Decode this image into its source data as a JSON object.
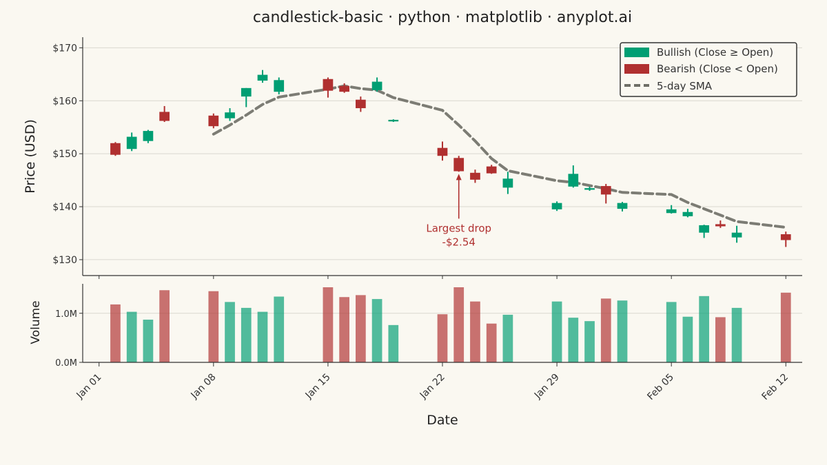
{
  "chart_data": {
    "type": "candlestick",
    "title": "candlestick-basic · python · matplotlib · anyplot.ai",
    "xlabel": "Date",
    "price_ylabel": "Price (USD)",
    "volume_ylabel": "Volume",
    "price_ylim": [
      127,
      172
    ],
    "volume_ylim": [
      0,
      1.6
    ],
    "price_ticks": [
      130,
      140,
      150,
      160,
      170
    ],
    "price_tick_labels": [
      "$130",
      "$140",
      "$150",
      "$160",
      "$170"
    ],
    "volume_ticks": [
      0,
      1.0
    ],
    "volume_tick_labels": [
      "0.0M",
      "1.0M"
    ],
    "x_ticks": [
      {
        "date": "2024-01-01",
        "label": "Jan 01"
      },
      {
        "date": "2024-01-08",
        "label": "Jan 08"
      },
      {
        "date": "2024-01-15",
        "label": "Jan 15"
      },
      {
        "date": "2024-01-22",
        "label": "Jan 22"
      },
      {
        "date": "2024-01-29",
        "label": "Jan 29"
      },
      {
        "date": "2024-02-05",
        "label": "Feb 05"
      },
      {
        "date": "2024-02-12",
        "label": "Feb 12"
      }
    ],
    "x_range": [
      "2023-12-31",
      "2024-02-13"
    ],
    "grid": true,
    "legend_position": "top-right",
    "colors": {
      "bullish": "#009E73",
      "bearish": "#B03030",
      "sma": "#6E6E66",
      "grid": "#DAD8D0",
      "axis": "#333333",
      "text": "#333333"
    },
    "legend": [
      {
        "key": "bullish",
        "label": "Bullish (Close ≥ Open)"
      },
      {
        "key": "bearish",
        "label": "Bearish (Close < Open)"
      },
      {
        "key": "sma",
        "label": "5-day SMA"
      }
    ],
    "candles": [
      {
        "date": "2024-01-02",
        "open": 152.0,
        "high": 152.2,
        "low": 149.6,
        "close": 149.8,
        "volume": 1.18
      },
      {
        "date": "2024-01-03",
        "open": 150.9,
        "high": 154.0,
        "low": 150.5,
        "close": 153.2,
        "volume": 1.03
      },
      {
        "date": "2024-01-04",
        "open": 152.4,
        "high": 154.5,
        "low": 152.0,
        "close": 154.3,
        "volume": 0.87
      },
      {
        "date": "2024-01-05",
        "open": 157.9,
        "high": 159.0,
        "low": 156.0,
        "close": 156.2,
        "volume": 1.47
      },
      {
        "date": "2024-01-08",
        "open": 157.2,
        "high": 157.6,
        "low": 154.8,
        "close": 155.2,
        "volume": 1.45
      },
      {
        "date": "2024-01-09",
        "open": 156.7,
        "high": 158.6,
        "low": 156.2,
        "close": 157.8,
        "volume": 1.23
      },
      {
        "date": "2024-01-10",
        "open": 160.8,
        "high": 162.4,
        "low": 158.8,
        "close": 162.4,
        "volume": 1.11
      },
      {
        "date": "2024-01-11",
        "open": 163.8,
        "high": 165.8,
        "low": 163.4,
        "close": 164.9,
        "volume": 1.03
      },
      {
        "date": "2024-01-12",
        "open": 161.7,
        "high": 164.4,
        "low": 161.2,
        "close": 163.9,
        "volume": 1.34
      },
      {
        "date": "2024-01-15",
        "open": 164.1,
        "high": 164.4,
        "low": 160.6,
        "close": 161.9,
        "volume": 1.53
      },
      {
        "date": "2024-01-16",
        "open": 162.8,
        "high": 163.3,
        "low": 161.5,
        "close": 161.7,
        "volume": 1.33
      },
      {
        "date": "2024-01-17",
        "open": 160.2,
        "high": 160.8,
        "low": 157.9,
        "close": 158.6,
        "volume": 1.37
      },
      {
        "date": "2024-01-18",
        "open": 162.0,
        "high": 164.4,
        "low": 161.7,
        "close": 163.6,
        "volume": 1.29
      },
      {
        "date": "2024-01-19",
        "open": 156.1,
        "high": 156.5,
        "low": 156.0,
        "close": 156.4,
        "volume": 0.76
      },
      {
        "date": "2024-01-22",
        "open": 151.1,
        "high": 152.3,
        "low": 148.7,
        "close": 149.6,
        "volume": 0.98
      },
      {
        "date": "2024-01-23",
        "open": 149.2,
        "high": 149.6,
        "low": 146.6,
        "close": 146.7,
        "volume": 1.53
      },
      {
        "date": "2024-01-24",
        "open": 146.4,
        "high": 147.0,
        "low": 144.5,
        "close": 145.1,
        "volume": 1.24
      },
      {
        "date": "2024-01-25",
        "open": 147.6,
        "high": 147.9,
        "low": 146.2,
        "close": 146.3,
        "volume": 0.79
      },
      {
        "date": "2024-01-26",
        "open": 143.6,
        "high": 146.6,
        "low": 142.4,
        "close": 145.3,
        "volume": 0.97
      },
      {
        "date": "2024-01-29",
        "open": 139.5,
        "high": 141.0,
        "low": 139.2,
        "close": 140.7,
        "volume": 1.24
      },
      {
        "date": "2024-01-30",
        "open": 143.8,
        "high": 147.8,
        "low": 143.6,
        "close": 146.2,
        "volume": 0.91
      },
      {
        "date": "2024-01-31",
        "open": 143.2,
        "high": 143.8,
        "low": 143.0,
        "close": 143.5,
        "volume": 0.84
      },
      {
        "date": "2024-02-01",
        "open": 143.9,
        "high": 144.3,
        "low": 140.6,
        "close": 142.3,
        "volume": 1.3
      },
      {
        "date": "2024-02-02",
        "open": 139.6,
        "high": 140.9,
        "low": 139.1,
        "close": 140.7,
        "volume": 1.26
      },
      {
        "date": "2024-02-05",
        "open": 138.8,
        "high": 140.3,
        "low": 138.7,
        "close": 139.5,
        "volume": 1.23
      },
      {
        "date": "2024-02-06",
        "open": 138.2,
        "high": 139.6,
        "low": 138.0,
        "close": 139.0,
        "volume": 0.93
      },
      {
        "date": "2024-02-07",
        "open": 135.1,
        "high": 136.6,
        "low": 134.1,
        "close": 136.5,
        "volume": 1.35
      },
      {
        "date": "2024-02-08",
        "open": 136.7,
        "high": 137.4,
        "low": 136.0,
        "close": 136.3,
        "volume": 0.92
      },
      {
        "date": "2024-02-09",
        "open": 134.2,
        "high": 136.4,
        "low": 133.2,
        "close": 135.1,
        "volume": 1.11
      },
      {
        "date": "2024-02-12",
        "open": 134.8,
        "high": 135.3,
        "low": 132.4,
        "close": 133.7,
        "volume": 1.42
      }
    ],
    "sma": [
      {
        "date": "2024-01-08",
        "value": 153.7
      },
      {
        "date": "2024-01-09",
        "value": 155.4
      },
      {
        "date": "2024-01-10",
        "value": 157.3
      },
      {
        "date": "2024-01-11",
        "value": 159.3
      },
      {
        "date": "2024-01-12",
        "value": 160.7
      },
      {
        "date": "2024-01-15",
        "value": 162.2
      },
      {
        "date": "2024-01-16",
        "value": 162.8
      },
      {
        "date": "2024-01-17",
        "value": 162.3
      },
      {
        "date": "2024-01-18",
        "value": 162.0
      },
      {
        "date": "2024-01-19",
        "value": 160.6
      },
      {
        "date": "2024-01-22",
        "value": 158.2
      },
      {
        "date": "2024-01-23",
        "value": 155.4
      },
      {
        "date": "2024-01-24",
        "value": 152.4
      },
      {
        "date": "2024-01-25",
        "value": 149.1
      },
      {
        "date": "2024-01-26",
        "value": 146.8
      },
      {
        "date": "2024-01-29",
        "value": 144.9
      },
      {
        "date": "2024-01-30",
        "value": 144.6
      },
      {
        "date": "2024-01-31",
        "value": 144.0
      },
      {
        "date": "2024-02-01",
        "value": 143.4
      },
      {
        "date": "2024-02-02",
        "value": 142.7
      },
      {
        "date": "2024-02-05",
        "value": 142.3
      },
      {
        "date": "2024-02-06",
        "value": 140.8
      },
      {
        "date": "2024-02-07",
        "value": 139.6
      },
      {
        "date": "2024-02-08",
        "value": 138.4
      },
      {
        "date": "2024-02-09",
        "value": 137.2
      },
      {
        "date": "2024-02-12",
        "value": 136.1
      }
    ],
    "annotation": {
      "date": "2024-01-23",
      "value": 146.2,
      "text_value": 138.0,
      "line1": "Largest drop",
      "line2": "-$2.54"
    }
  }
}
